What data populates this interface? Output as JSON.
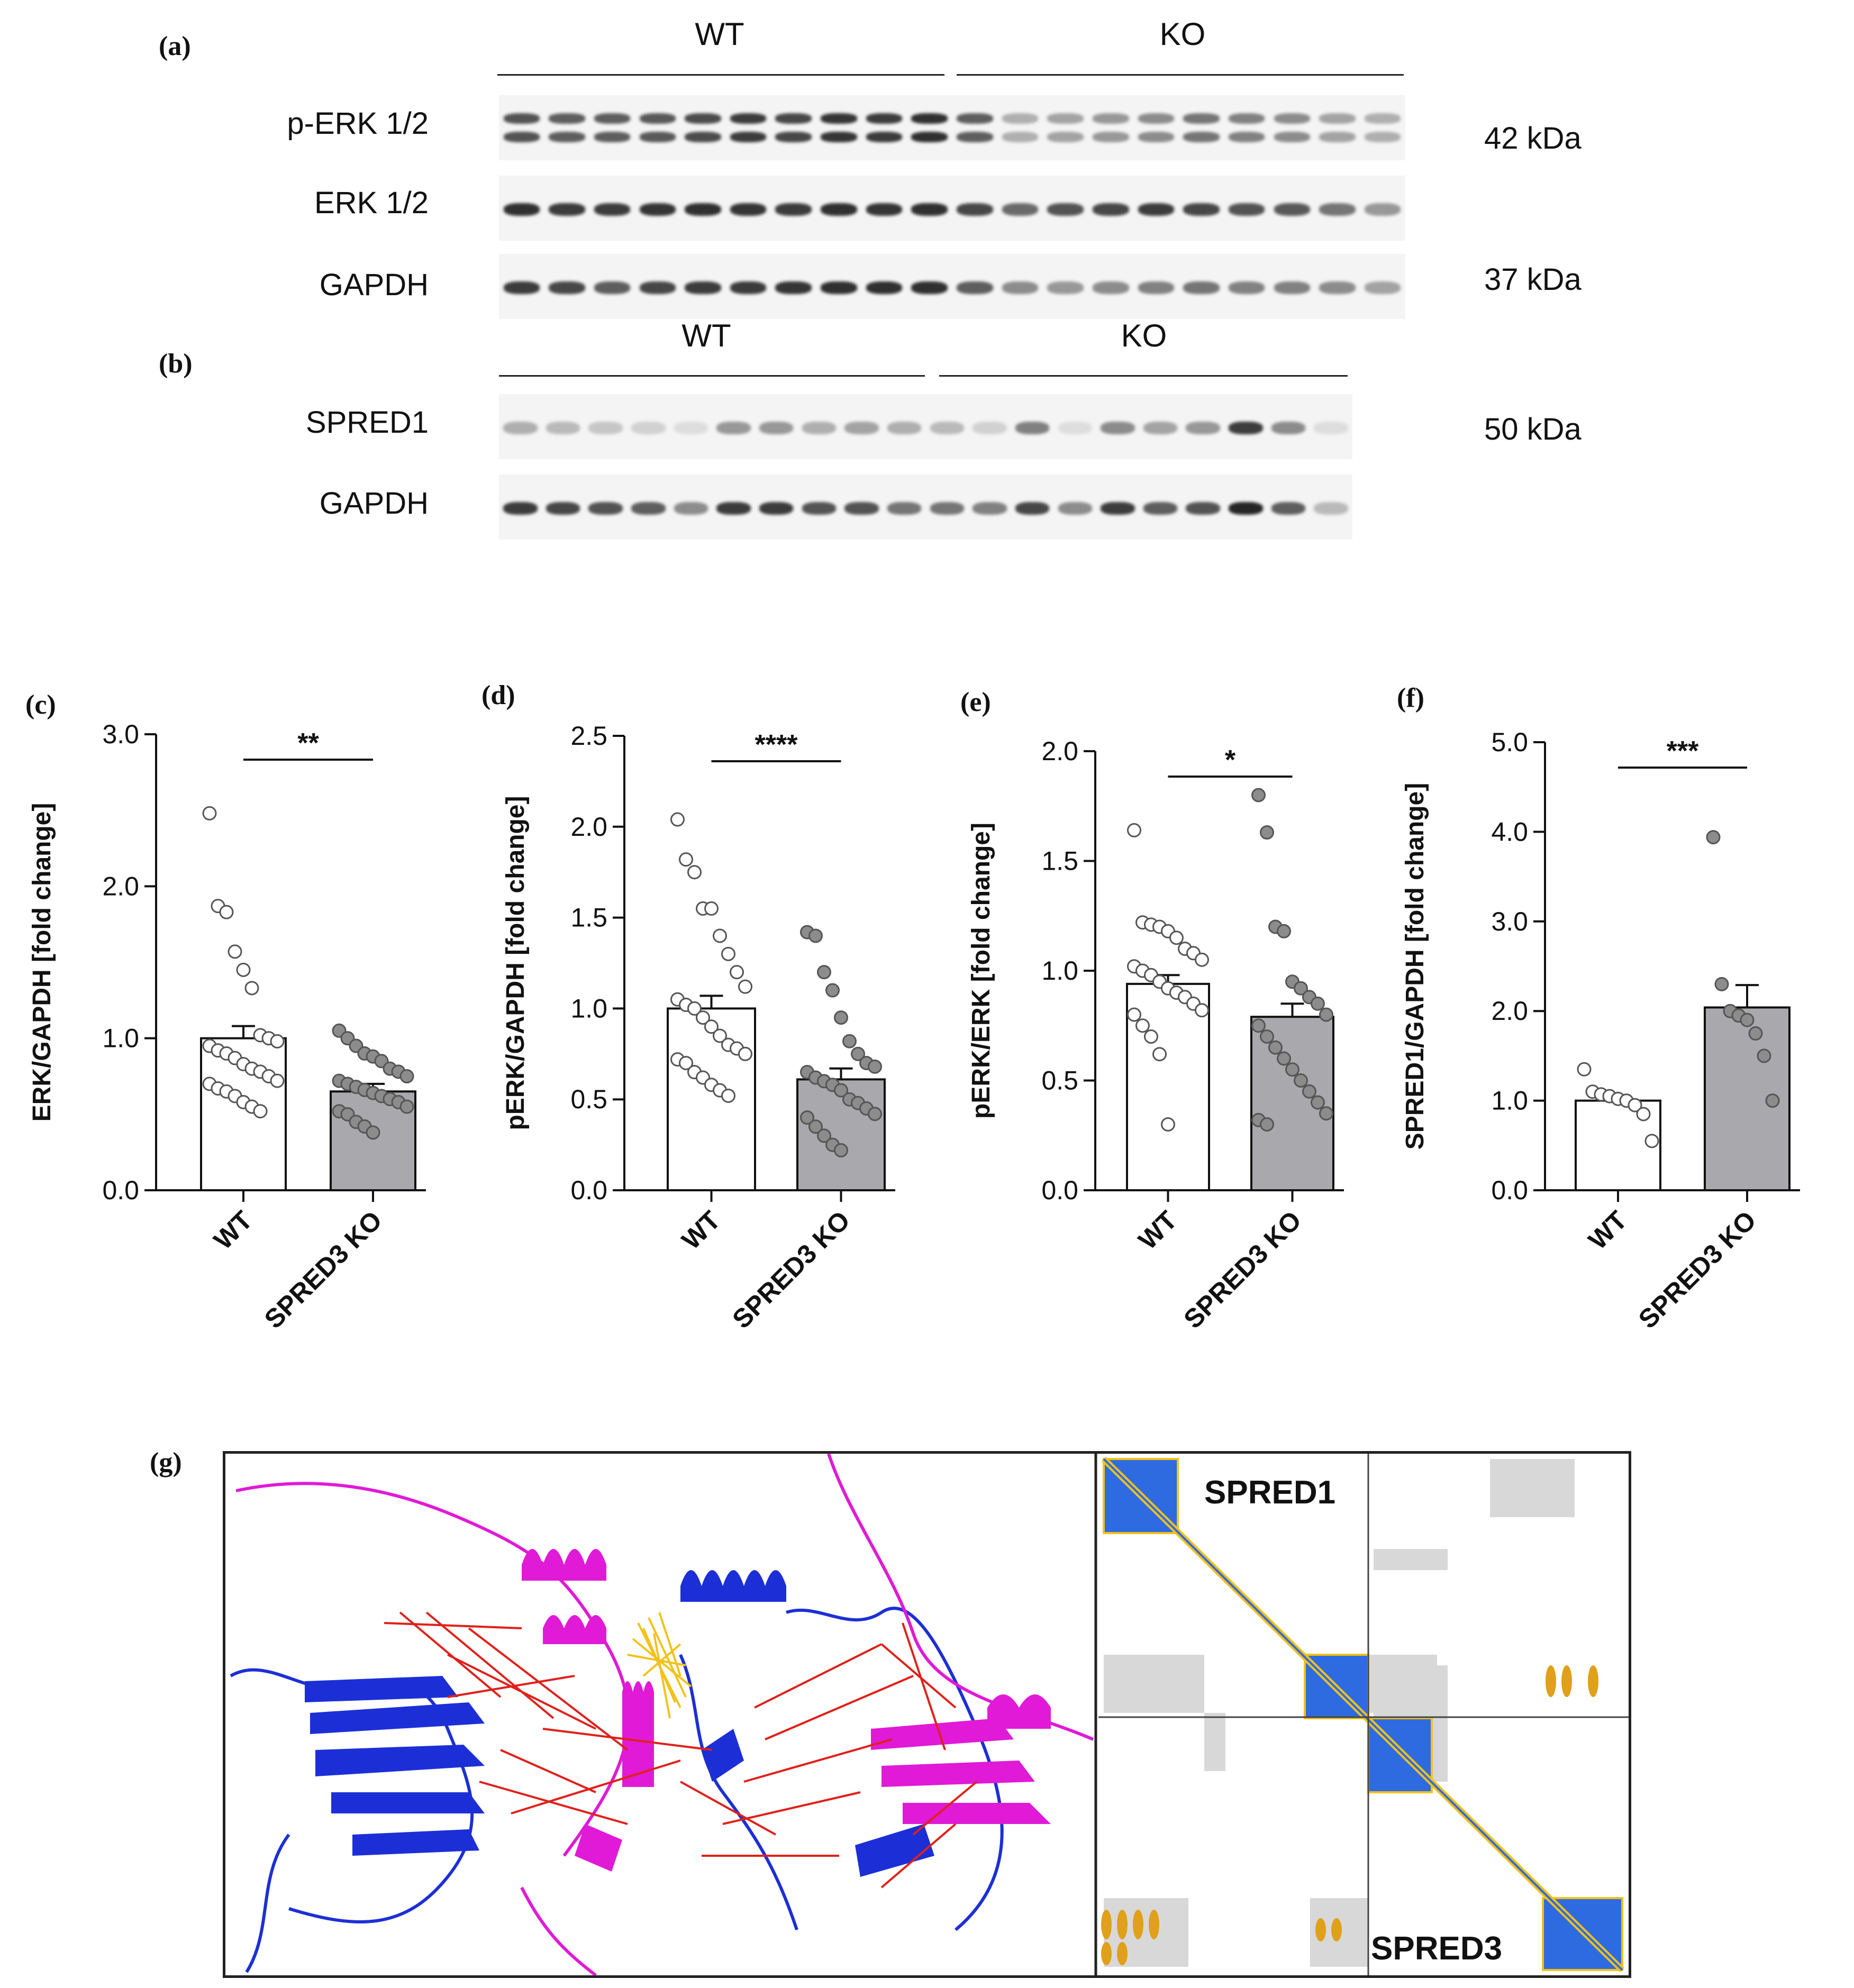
{
  "panel_labels": [
    "(a)",
    "(b)",
    "(c)",
    "(d)",
    "(e)",
    "(f)",
    "(g)"
  ],
  "blot_a": {
    "groups": [
      "WT",
      "KO"
    ],
    "rows": [
      "p-ERK 1/2",
      "ERK 1/2",
      "GAPDH"
    ],
    "mw": [
      "42 kDa",
      "37 kDa"
    ],
    "lane_intensity": {
      "perk": [
        0.75,
        0.7,
        0.7,
        0.72,
        0.78,
        0.85,
        0.8,
        0.88,
        0.85,
        0.9,
        0.7,
        0.35,
        0.4,
        0.45,
        0.5,
        0.6,
        0.55,
        0.5,
        0.4,
        0.35
      ],
      "erk": [
        0.9,
        0.85,
        0.85,
        0.88,
        0.9,
        0.88,
        0.85,
        0.9,
        0.88,
        0.9,
        0.8,
        0.65,
        0.75,
        0.8,
        0.85,
        0.8,
        0.75,
        0.72,
        0.6,
        0.45
      ],
      "gapdh": [
        0.85,
        0.8,
        0.7,
        0.8,
        0.85,
        0.85,
        0.88,
        0.9,
        0.9,
        0.9,
        0.7,
        0.5,
        0.45,
        0.5,
        0.55,
        0.6,
        0.55,
        0.55,
        0.5,
        0.4
      ]
    }
  },
  "blot_b": {
    "groups": [
      "WT",
      "KO"
    ],
    "rows": [
      "SPRED1",
      "GAPDH"
    ],
    "mw": [
      "50 kDa"
    ],
    "lane_intensity": {
      "spred1": [
        0.35,
        0.3,
        0.25,
        0.2,
        0.15,
        0.45,
        0.45,
        0.35,
        0.4,
        0.35,
        0.3,
        0.2,
        0.55,
        0.15,
        0.5,
        0.4,
        0.45,
        0.85,
        0.5,
        0.15
      ],
      "gapdh": [
        0.85,
        0.8,
        0.75,
        0.7,
        0.5,
        0.85,
        0.85,
        0.75,
        0.75,
        0.6,
        0.6,
        0.55,
        0.8,
        0.5,
        0.85,
        0.7,
        0.75,
        0.95,
        0.7,
        0.3
      ]
    }
  },
  "chart_data": [
    {
      "type": "bar",
      "panel": "(c)",
      "categories": [
        "WT",
        "SPRED3 KO"
      ],
      "values": [
        1.0,
        0.65
      ],
      "sem": [
        0.08,
        0.05
      ],
      "ylabel": "ERK/GAPDH [fold change]",
      "ylim": [
        0,
        3.0
      ],
      "yticks": [
        "0.0",
        "1.0",
        "2.0",
        "3.0"
      ],
      "significance": "**",
      "points": [
        [
          2.48,
          1.87,
          1.83,
          1.57,
          1.45,
          1.33,
          1.02,
          1.0,
          0.98,
          0.95,
          0.92,
          0.9,
          0.87,
          0.83,
          0.8,
          0.78,
          0.75,
          0.72,
          0.7,
          0.67,
          0.65,
          0.62,
          0.58,
          0.55,
          0.52
        ],
        [
          1.05,
          1.0,
          0.95,
          0.9,
          0.88,
          0.85,
          0.8,
          0.78,
          0.75,
          0.72,
          0.7,
          0.68,
          0.66,
          0.64,
          0.62,
          0.6,
          0.58,
          0.55,
          0.52,
          0.5,
          0.45,
          0.42,
          0.38
        ]
      ]
    },
    {
      "type": "bar",
      "panel": "(d)",
      "categories": [
        "WT",
        "SPRED3 KO"
      ],
      "values": [
        1.0,
        0.61
      ],
      "sem": [
        0.07,
        0.06
      ],
      "ylabel": "pERK/GAPDH [fold change]",
      "ylim": [
        0,
        2.5
      ],
      "yticks": [
        "0.0",
        "0.5",
        "1.0",
        "1.5",
        "2.0",
        "2.5"
      ],
      "significance": "****",
      "points": [
        [
          2.04,
          1.82,
          1.75,
          1.55,
          1.55,
          1.4,
          1.3,
          1.2,
          1.12,
          1.05,
          1.02,
          1.0,
          0.95,
          0.9,
          0.85,
          0.8,
          0.78,
          0.75,
          0.72,
          0.7,
          0.65,
          0.62,
          0.58,
          0.55,
          0.52
        ],
        [
          1.42,
          1.4,
          1.2,
          1.1,
          0.95,
          0.82,
          0.75,
          0.7,
          0.68,
          0.65,
          0.62,
          0.6,
          0.58,
          0.55,
          0.5,
          0.48,
          0.45,
          0.42,
          0.4,
          0.35,
          0.3,
          0.25,
          0.22
        ]
      ]
    },
    {
      "type": "bar",
      "panel": "(e)",
      "categories": [
        "WT",
        "SPRED3 KO"
      ],
      "values": [
        0.94,
        0.79
      ],
      "sem": [
        0.04,
        0.06
      ],
      "ylabel": "pERK/ERK [fold change]",
      "ylim": [
        0,
        2.0
      ],
      "yticks": [
        "0.0",
        "0.5",
        "1.0",
        "1.5",
        "2.0"
      ],
      "significance": "*",
      "points": [
        [
          1.64,
          1.22,
          1.21,
          1.2,
          1.18,
          1.15,
          1.1,
          1.08,
          1.05,
          1.02,
          1.0,
          0.98,
          0.95,
          0.92,
          0.9,
          0.88,
          0.85,
          0.82,
          0.8,
          0.75,
          0.7,
          0.62,
          0.3
        ],
        [
          1.8,
          1.63,
          1.2,
          1.18,
          0.95,
          0.92,
          0.88,
          0.85,
          0.8,
          0.75,
          0.7,
          0.65,
          0.6,
          0.55,
          0.5,
          0.45,
          0.4,
          0.35,
          0.32,
          0.3
        ]
      ]
    },
    {
      "type": "bar",
      "panel": "(f)",
      "categories": [
        "WT",
        "SPRED3 KO"
      ],
      "values": [
        1.0,
        2.04
      ],
      "sem": [
        0.06,
        0.25
      ],
      "ylabel": "SPRED1/GAPDH [fold change]",
      "ylim": [
        0,
        5.0
      ],
      "yticks": [
        "0.0",
        "1.0",
        "2.0",
        "3.0",
        "4.0",
        "5.0"
      ],
      "significance": "***",
      "points": [
        [
          1.35,
          1.1,
          1.07,
          1.05,
          1.02,
          1.0,
          0.95,
          0.85,
          0.55
        ],
        [
          3.94,
          2.3,
          2.0,
          1.95,
          1.9,
          1.75,
          1.5,
          1.0
        ]
      ]
    }
  ],
  "panel_g": {
    "pae_labels": [
      "SPRED1",
      "SPRED3"
    ],
    "colors": {
      "chain_a": "#1c2fd6",
      "chain_b": "#e01ad6",
      "contacts": "#e0201a",
      "interface": "#f2c21a",
      "pae_low": "#2f6be0",
      "pae_mid": "#f2c21a"
    }
  }
}
